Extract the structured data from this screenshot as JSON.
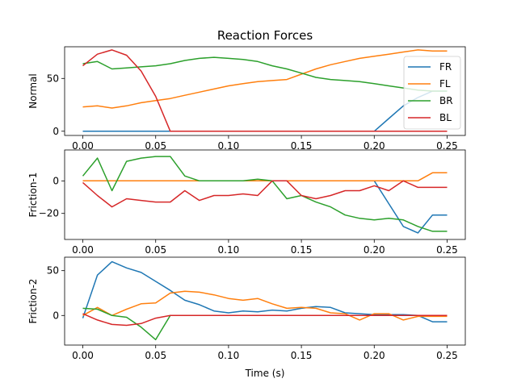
{
  "figure": {
    "title": "Reaction Forces",
    "xlabel": "Time (s)"
  },
  "colors": {
    "FR": "#1f77b4",
    "FL": "#ff7f0e",
    "BR": "#2ca02c",
    "BL": "#d62728"
  },
  "chart_data": [
    {
      "type": "line",
      "ylabel": "Normal",
      "xlim": [
        -0.0125,
        0.2625
      ],
      "ylim": [
        -4,
        80
      ],
      "xticks": [
        0.0,
        0.05,
        0.1,
        0.15,
        0.2,
        0.25
      ],
      "xtick_labels": [
        "0.00",
        "0.05",
        "0.10",
        "0.15",
        "0.20",
        "0.25"
      ],
      "yticks": [
        0,
        50
      ],
      "ytick_labels": [
        "0",
        "50"
      ],
      "legend": {
        "placement": "right",
        "entries": [
          "FR",
          "FL",
          "BR",
          "BL"
        ]
      },
      "x": [
        0.0,
        0.01,
        0.02,
        0.03,
        0.04,
        0.05,
        0.06,
        0.07,
        0.08,
        0.09,
        0.1,
        0.11,
        0.12,
        0.13,
        0.14,
        0.15,
        0.16,
        0.17,
        0.18,
        0.19,
        0.2,
        0.21,
        0.22,
        0.23,
        0.24,
        0.25
      ],
      "series": [
        {
          "name": "FR",
          "values": [
            0,
            0,
            0,
            0,
            0,
            0,
            0,
            0,
            0,
            0,
            0,
            0,
            0,
            0,
            0,
            0,
            0,
            0,
            0,
            0,
            0,
            12,
            24,
            32,
            38,
            38
          ]
        },
        {
          "name": "FL",
          "values": [
            23,
            24,
            22,
            24,
            27,
            29,
            31,
            34,
            37,
            40,
            43,
            45,
            47,
            48,
            49,
            54,
            59,
            63,
            66,
            69,
            71,
            73,
            75,
            77,
            76,
            76
          ]
        },
        {
          "name": "BR",
          "values": [
            64,
            66,
            59,
            60,
            61,
            62,
            64,
            67,
            69,
            70,
            69,
            68,
            66,
            62,
            59,
            55,
            51,
            49,
            48,
            47,
            45,
            43,
            41,
            39,
            38,
            38
          ]
        },
        {
          "name": "BL",
          "values": [
            62,
            73,
            77,
            72,
            57,
            33,
            0,
            0,
            0,
            0,
            0,
            0,
            0,
            0,
            0,
            0,
            0,
            0,
            0,
            0,
            0,
            0,
            0,
            0,
            0,
            0
          ]
        }
      ]
    },
    {
      "type": "line",
      "ylabel": "Friction-1",
      "xlim": [
        -0.0125,
        0.2625
      ],
      "ylim": [
        -36,
        19
      ],
      "xticks": [
        0.0,
        0.05,
        0.1,
        0.15,
        0.2,
        0.25
      ],
      "xtick_labels": [
        "0.00",
        "0.05",
        "0.10",
        "0.15",
        "0.20",
        "0.25"
      ],
      "yticks": [
        -20,
        0
      ],
      "ytick_labels": [
        "−20",
        "0"
      ],
      "x": [
        0.0,
        0.01,
        0.02,
        0.03,
        0.04,
        0.05,
        0.06,
        0.07,
        0.08,
        0.09,
        0.1,
        0.11,
        0.12,
        0.13,
        0.14,
        0.15,
        0.16,
        0.17,
        0.18,
        0.19,
        0.2,
        0.21,
        0.22,
        0.23,
        0.24,
        0.25
      ],
      "series": [
        {
          "name": "FR",
          "values": [
            0,
            0,
            0,
            0,
            0,
            0,
            0,
            0,
            0,
            0,
            0,
            0,
            0,
            0,
            0,
            0,
            0,
            0,
            0,
            0,
            0,
            -14,
            -28,
            -32,
            -21,
            -21
          ]
        },
        {
          "name": "FL",
          "values": [
            0,
            0,
            0,
            0,
            0,
            0,
            0,
            0,
            0,
            0,
            0,
            0,
            0,
            0,
            0,
            0,
            0,
            0,
            0,
            0,
            0,
            0,
            0,
            0,
            5,
            5
          ]
        },
        {
          "name": "BR",
          "values": [
            3,
            14,
            -6,
            12,
            14,
            15,
            15,
            3,
            0,
            0,
            0,
            0,
            1,
            0,
            -11,
            -9,
            -13,
            -16,
            -21,
            -23,
            -24,
            -23,
            -24,
            -28,
            -31,
            -31
          ]
        },
        {
          "name": "BL",
          "values": [
            -1,
            -9,
            -16,
            -11,
            -12,
            -13,
            -13,
            -6,
            -12,
            -9,
            -9,
            -8,
            -9,
            0,
            0,
            -9,
            -11,
            -9,
            -6,
            -6,
            -3,
            -6,
            0,
            -4,
            -4,
            -4
          ]
        }
      ]
    },
    {
      "type": "line",
      "ylabel": "Friction-2",
      "xlim": [
        -0.0125,
        0.2625
      ],
      "ylim": [
        -33,
        65
      ],
      "xticks": [
        0.0,
        0.05,
        0.1,
        0.15,
        0.2,
        0.25
      ],
      "xtick_labels": [
        "0.00",
        "0.05",
        "0.10",
        "0.15",
        "0.20",
        "0.25"
      ],
      "yticks": [
        0,
        50
      ],
      "ytick_labels": [
        "0",
        "50"
      ],
      "x": [
        0.0,
        0.01,
        0.02,
        0.03,
        0.04,
        0.05,
        0.06,
        0.07,
        0.08,
        0.09,
        0.1,
        0.11,
        0.12,
        0.13,
        0.14,
        0.15,
        0.16,
        0.17,
        0.18,
        0.19,
        0.2,
        0.21,
        0.22,
        0.23,
        0.24,
        0.25
      ],
      "series": [
        {
          "name": "FR",
          "values": [
            -3,
            45,
            60,
            53,
            48,
            38,
            28,
            17,
            12,
            5,
            3,
            5,
            4,
            6,
            5,
            8,
            10,
            9,
            3,
            2,
            1,
            1,
            1,
            0,
            -7,
            -7
          ]
        },
        {
          "name": "FL",
          "values": [
            0,
            9,
            0,
            7,
            13,
            14,
            25,
            27,
            26,
            23,
            19,
            17,
            19,
            13,
            8,
            9,
            8,
            3,
            2,
            -5,
            2,
            2,
            -5,
            -1,
            -1,
            -1
          ]
        },
        {
          "name": "BR",
          "values": [
            8,
            7,
            0,
            -2,
            -13,
            -27,
            0,
            0,
            0,
            0,
            0,
            0,
            0,
            0,
            0,
            0,
            0,
            0,
            0,
            0,
            0,
            0,
            0,
            0,
            0,
            0
          ]
        },
        {
          "name": "BL",
          "values": [
            2,
            -5,
            -10,
            -11,
            -9,
            -3,
            0,
            0,
            0,
            0,
            0,
            0,
            0,
            0,
            0,
            0,
            0,
            0,
            0,
            0,
            0,
            0,
            0,
            0,
            0,
            0
          ]
        }
      ]
    }
  ]
}
